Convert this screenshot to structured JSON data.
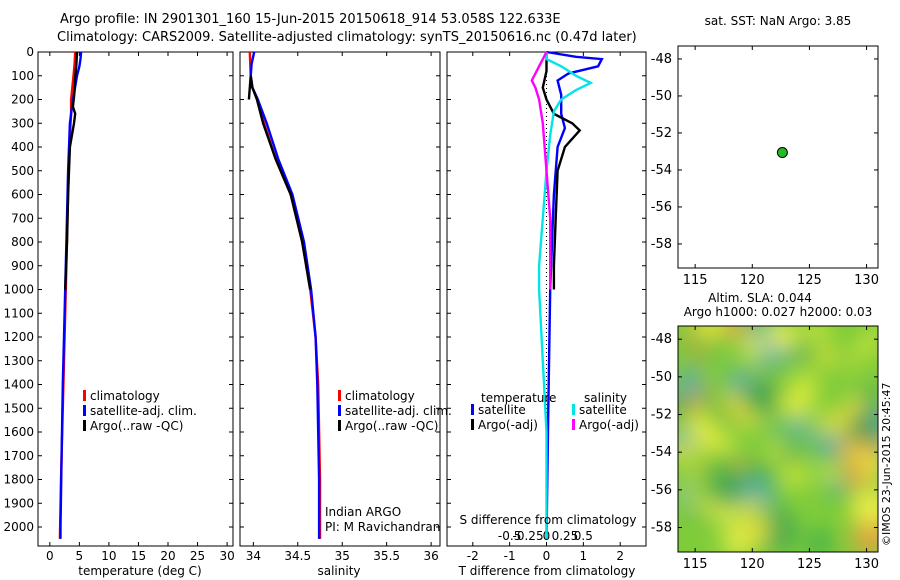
{
  "header": {
    "line1": "Argo profile: IN 2901301_160 15-Jun-2015 20150618_914 53.058S 122.633E",
    "line2": "Climatology: CARS2009. Satellite-adjusted climatology: synTS_20150616.nc (0.47d later)"
  },
  "colors": {
    "climatology": "#ff0000",
    "satellite": "#0000ff",
    "argo": "#000000",
    "cyan": "#00e5e5",
    "magenta": "#ff00ff",
    "dot": "#22bb22"
  },
  "chart_data": [
    {
      "type": "line",
      "id": "temperature",
      "xlabel": "temperature (deg C)",
      "xlim": [
        -2,
        31
      ],
      "ylim": [
        2080,
        0
      ],
      "xticks": [
        "0",
        "5",
        "10",
        "15",
        "20",
        "25",
        "30"
      ],
      "yticks": [
        "0",
        "100",
        "200",
        "300",
        "400",
        "500",
        "600",
        "700",
        "800",
        "900",
        "1000",
        "1100",
        "1200",
        "1300",
        "1400",
        "1500",
        "1600",
        "1700",
        "1800",
        "1900",
        "2000"
      ],
      "legend": [
        "climatology",
        "satellite-adj. clim.",
        "Argo(..raw -QC)"
      ],
      "series": [
        {
          "name": "climatology",
          "points": [
            [
              4.3,
              0
            ],
            [
              4.2,
              50
            ],
            [
              4.0,
              100
            ],
            [
              3.8,
              150
            ],
            [
              3.6,
              200
            ],
            [
              3.6,
              260
            ],
            [
              3.3,
              400
            ],
            [
              3.0,
              700
            ],
            [
              2.7,
              1000
            ],
            [
              2.4,
              1300
            ],
            [
              2.1,
              1600
            ],
            [
              1.9,
              1800
            ],
            [
              1.7,
              2050
            ]
          ]
        },
        {
          "name": "satellite-adj. clim.",
          "points": [
            [
              5.3,
              0
            ],
            [
              5.2,
              30
            ],
            [
              5.0,
              60
            ],
            [
              4.6,
              100
            ],
            [
              4.2,
              160
            ],
            [
              3.8,
              220
            ],
            [
              3.4,
              300
            ],
            [
              3.1,
              500
            ],
            [
              2.8,
              800
            ],
            [
              2.5,
              1100
            ],
            [
              2.2,
              1400
            ],
            [
              2.0,
              1700
            ],
            [
              1.8,
              2000
            ],
            [
              1.8,
              2050
            ]
          ]
        },
        {
          "name": "Argo(..raw -QC)",
          "points": [
            [
              4.6,
              0
            ],
            [
              4.5,
              50
            ],
            [
              4.3,
              110
            ],
            [
              4.2,
              160
            ],
            [
              4.1,
              190
            ],
            [
              3.9,
              230
            ],
            [
              4.3,
              260
            ],
            [
              4.1,
              300
            ],
            [
              3.4,
              400
            ],
            [
              3.1,
              600
            ],
            [
              2.9,
              800
            ],
            [
              2.6,
              1000
            ]
          ]
        }
      ]
    },
    {
      "type": "line",
      "id": "salinity",
      "xlabel": "salinity",
      "xlim": [
        33.85,
        36.1
      ],
      "ylim": [
        2080,
        0
      ],
      "xticks": [
        "34",
        "34.5",
        "35",
        "35.5",
        "36"
      ],
      "legend": [
        "climatology",
        "satellite-adj. clim.",
        "Argo(..raw -QC)"
      ],
      "annotation": [
        "Indian ARGO",
        "PI: M Ravichandran"
      ],
      "series": [
        {
          "name": "climatology",
          "points": [
            [
              33.96,
              0
            ],
            [
              33.97,
              100
            ],
            [
              33.99,
              150
            ],
            [
              34.05,
              200
            ],
            [
              34.12,
              300
            ],
            [
              34.25,
              450
            ],
            [
              34.42,
              600
            ],
            [
              34.55,
              800
            ],
            [
              34.64,
              1000
            ],
            [
              34.7,
              1200
            ],
            [
              34.73,
              1400
            ],
            [
              34.74,
              1600
            ],
            [
              34.75,
              1800
            ],
            [
              34.75,
              2050
            ]
          ]
        },
        {
          "name": "satellite-adj. clim.",
          "points": [
            [
              34.01,
              0
            ],
            [
              33.98,
              50
            ],
            [
              33.97,
              100
            ],
            [
              33.99,
              150
            ],
            [
              34.05,
              200
            ],
            [
              34.15,
              300
            ],
            [
              34.28,
              450
            ],
            [
              34.44,
              600
            ],
            [
              34.57,
              800
            ],
            [
              34.65,
              1000
            ],
            [
              34.7,
              1200
            ],
            [
              34.72,
              1400
            ],
            [
              34.73,
              1600
            ],
            [
              34.74,
              1800
            ],
            [
              34.74,
              2000
            ],
            [
              34.74,
              2050
            ]
          ]
        },
        {
          "name": "Argo(..raw -QC)",
          "points": [
            [
              33.95,
              200
            ],
            [
              33.97,
              100
            ],
            [
              33.99,
              150
            ],
            [
              34.04,
              200
            ],
            [
              34.11,
              300
            ],
            [
              34.25,
              450
            ],
            [
              34.42,
              600
            ],
            [
              34.55,
              800
            ],
            [
              34.64,
              1000
            ]
          ]
        }
      ]
    },
    {
      "type": "line",
      "id": "difference",
      "xlabel": "T difference from climatology",
      "xlabel2": "S difference from climatology",
      "xlim": [
        -2.7,
        2.7
      ],
      "ylim": [
        2080,
        0
      ],
      "xticks": [
        "-2",
        "-1",
        "0",
        "1",
        "2"
      ],
      "xticks2": [
        "-0.5",
        "-0.25",
        "0",
        "0.25",
        "0.5"
      ],
      "legend": {
        "temperature": "temperature",
        "salinity": "salinity",
        "sat": "satellite",
        "argo": "Argo(-adj)"
      },
      "series": [
        {
          "name": "satellite",
          "group": "temperature",
          "points": [
            [
              0.0,
              0
            ],
            [
              0.8,
              20
            ],
            [
              1.5,
              30
            ],
            [
              1.4,
              60
            ],
            [
              0.6,
              90
            ],
            [
              0.3,
              120
            ],
            [
              0.4,
              180
            ],
            [
              0.4,
              220
            ],
            [
              0.4,
              260
            ],
            [
              0.5,
              320
            ],
            [
              0.3,
              400
            ],
            [
              0.2,
              600
            ],
            [
              0.1,
              1000
            ],
            [
              0.05,
              1500
            ],
            [
              0.0,
              2050
            ]
          ]
        },
        {
          "name": "Argo(-adj)",
          "group": "temperature",
          "points": [
            [
              0.0,
              0
            ],
            [
              0.0,
              80
            ],
            [
              -0.1,
              150
            ],
            [
              0.0,
              200
            ],
            [
              0.2,
              260
            ],
            [
              0.7,
              300
            ],
            [
              0.9,
              330
            ],
            [
              0.5,
              400
            ],
            [
              0.3,
              500
            ],
            [
              0.25,
              700
            ],
            [
              0.2,
              900
            ],
            [
              0.2,
              1000
            ]
          ]
        },
        {
          "name": "satellite",
          "group": "salinity",
          "points": [
            [
              0.0,
              0
            ],
            [
              0.0,
              30
            ],
            [
              0.2,
              60
            ],
            [
              0.4,
              100
            ],
            [
              0.6,
              130
            ],
            [
              0.4,
              160
            ],
            [
              0.2,
              200
            ],
            [
              0.1,
              250
            ],
            [
              0.05,
              350
            ],
            [
              0.0,
              500
            ],
            [
              -0.05,
              700
            ],
            [
              -0.1,
              900
            ],
            [
              -0.1,
              1000
            ],
            [
              -0.05,
              1300
            ],
            [
              0.0,
              1600
            ],
            [
              0.0,
              1900
            ],
            [
              0.0,
              2050
            ]
          ]
        },
        {
          "name": "Argo(-adj)",
          "group": "salinity",
          "points": [
            [
              0.0,
              0
            ],
            [
              -0.1,
              60
            ],
            [
              -0.2,
              120
            ],
            [
              -0.15,
              150
            ],
            [
              -0.1,
              200
            ],
            [
              -0.05,
              300
            ],
            [
              0.0,
              500
            ],
            [
              0.05,
              700
            ],
            [
              0.05,
              900
            ],
            [
              0.05,
              1000
            ]
          ]
        }
      ]
    },
    {
      "type": "scatter",
      "id": "map-sst",
      "title": "sat. SST: NaN Argo: 3.85",
      "xlim": [
        113.5,
        131
      ],
      "ylim": [
        -59.3,
        -47.3
      ],
      "xticks": [
        "115",
        "120",
        "125",
        "130"
      ],
      "yticks": [
        "-48",
        "-50",
        "-52",
        "-54",
        "-56",
        "-58"
      ],
      "points": [
        [
          122.633,
          -53.058
        ]
      ]
    },
    {
      "type": "heatmap",
      "id": "map-sla",
      "title": "Altim. SLA: 0.044",
      "subtitle": "Argo h1000: 0.027 h2000: 0.03",
      "xlim": [
        113.5,
        131
      ],
      "ylim": [
        -59.3,
        -47.3
      ],
      "xticks": [
        "115",
        "120",
        "125",
        "130"
      ],
      "yticks": [
        "-48",
        "-50",
        "-52",
        "-54",
        "-56",
        "-58"
      ]
    }
  ],
  "credit": "©IMOS 23-Jun-2015 20:45:47"
}
